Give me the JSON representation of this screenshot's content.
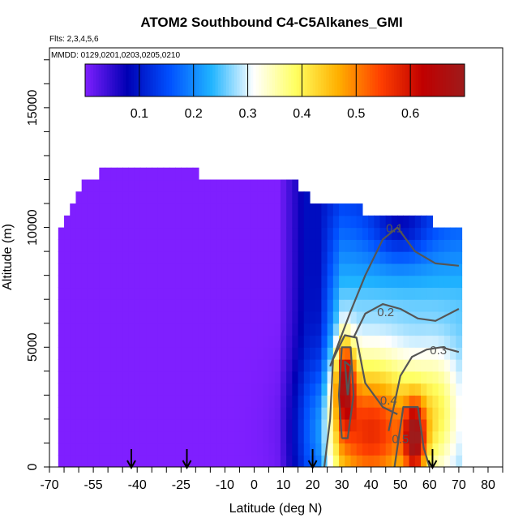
{
  "chart_data": {
    "type": "heatmap",
    "title": "ATOM2 Southbound C4-C5Alkanes_GMI",
    "subtitle_flights": "Flts: 2,3,4,5,6",
    "subtitle_dates": "MMDD: 0129,0201,0203,0205,0210",
    "xlabel": "Latitude (deg N)",
    "ylabel": "Altitude (m)",
    "xlim": [
      -70,
      85
    ],
    "ylim": [
      0,
      17500
    ],
    "x_ticks": [
      "-70",
      "-55",
      "-40",
      "-25",
      "-10",
      "0",
      "10",
      "20",
      "30",
      "40",
      "50",
      "60",
      "70",
      "80"
    ],
    "y_ticks": [
      "0",
      "5000",
      "10000",
      "15000"
    ],
    "colorbar": {
      "range": [
        0,
        0.7
      ],
      "ticks": [
        "0.1",
        "0.2",
        "0.3",
        "0.4",
        "0.5",
        "0.6"
      ],
      "colors": [
        "#7f1fff",
        "#0000b4",
        "#0050ff",
        "#20b4ff",
        "#ffffff",
        "#ffff60",
        "#ffb000",
        "#ff4000",
        "#c00000",
        "#9e1b1b"
      ]
    },
    "contour_levels": [
      "0.1",
      "0.2",
      "0.3",
      "0.4",
      "0.5"
    ],
    "flight_markers_lat": [
      -42,
      -23,
      20,
      61
    ],
    "legend": "colorbar-top",
    "grid": false
  }
}
